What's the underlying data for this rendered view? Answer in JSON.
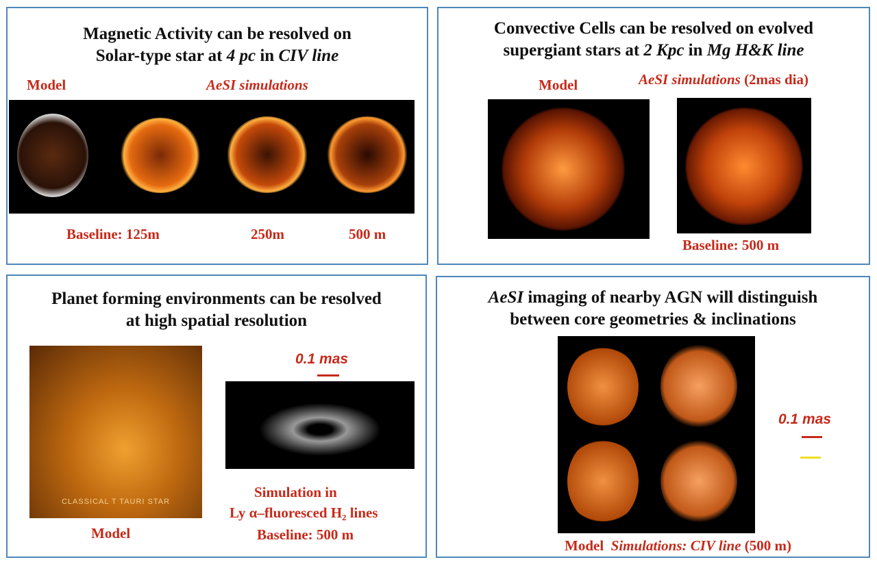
{
  "panels": [
    {
      "title": [
        "Magnetic Activity can be resolved on",
        "Solar-type star at ",
        "4 pc",
        " in ",
        "CIV line"
      ],
      "labels": {
        "model": "Model",
        "simulations": "AeSI simulations",
        "baselines": [
          "Baseline:  125m",
          "250m",
          "500 m"
        ]
      }
    },
    {
      "title": [
        "Convective Cells can be resolved on evolved",
        "supergiant stars at ",
        "2 Kpc",
        " in ",
        "Mg H&K line"
      ],
      "labels": {
        "model": "Model",
        "simulations": "AeSI simulations",
        "simulations_note": " (2mas dia)",
        "baseline": "Baseline: 500 m"
      }
    },
    {
      "title": [
        "Planet forming environments can be resolved",
        "at high spatial resolution"
      ],
      "labels": {
        "scale": "0.1 mas",
        "image_caption": "CLASSICAL T TAURI STAR",
        "model": "Model",
        "simulation": [
          "Simulation in",
          "Ly α–fluoresced H₂ lines"
        ],
        "baseline": "Baseline: 500 m"
      }
    },
    {
      "title": [
        "AeSI",
        " imaging of nearby AGN will distinguish",
        "between core geometries & inclinations"
      ],
      "labels": {
        "scale": "0.1 mas",
        "model": "Model",
        "simulations": "Simulations: ",
        "line": "CIV line",
        "baseline": " (500 m)"
      }
    }
  ]
}
